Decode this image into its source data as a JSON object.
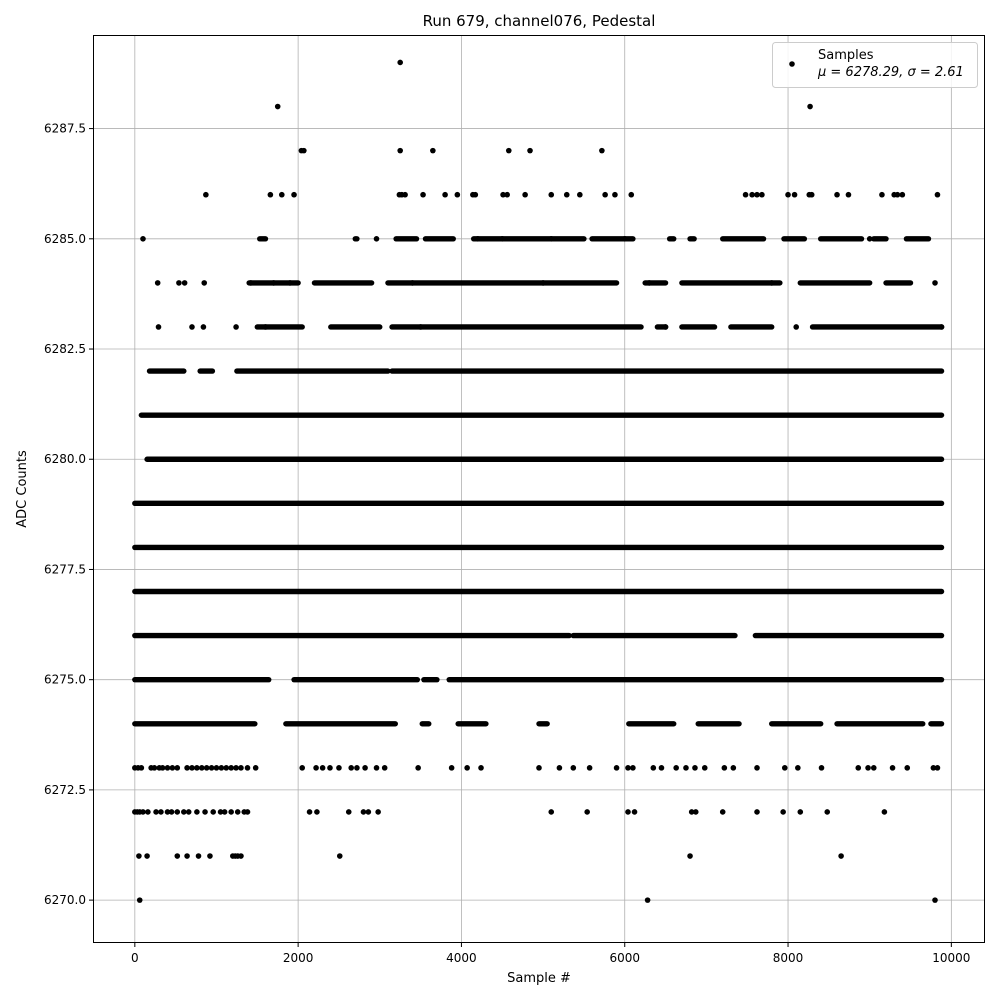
{
  "chart_data": {
    "type": "scatter",
    "title": "Run 679, channel076, Pedestal",
    "xlabel": "Sample #",
    "ylabel": "ADC Counts",
    "xlim": [
      -500,
      10400
    ],
    "ylim": [
      6269.05,
      6289.6
    ],
    "x_ticks": [
      0,
      2000,
      4000,
      6000,
      8000,
      10000
    ],
    "x_tick_labels": [
      "0",
      "2000",
      "4000",
      "6000",
      "8000",
      "10000"
    ],
    "y_ticks": [
      6270.0,
      6272.5,
      6275.0,
      6277.5,
      6280.0,
      6282.5,
      6285.0,
      6287.5
    ],
    "y_tick_labels": [
      "6270.0",
      "6272.5",
      "6275.0",
      "6277.5",
      "6280.0",
      "6282.5",
      "6285.0",
      "6287.5"
    ],
    "grid": true,
    "legend_position": "top-right",
    "series": [
      {
        "name": "Samples",
        "color": "#000000",
        "points": [
          [
            60,
            6270
          ],
          [
            6280,
            6270
          ],
          [
            9800,
            6270
          ],
          [
            50,
            6271
          ],
          [
            150,
            6271
          ],
          [
            520,
            6271
          ],
          [
            640,
            6271
          ],
          [
            780,
            6271
          ],
          [
            920,
            6271
          ],
          [
            1200,
            6271
          ],
          [
            1230,
            6271
          ],
          [
            1260,
            6271
          ],
          [
            1300,
            6271
          ],
          [
            2510,
            6271
          ],
          [
            6800,
            6271
          ],
          [
            8650,
            6271
          ],
          [
            0,
            6272
          ],
          [
            30,
            6272
          ],
          [
            60,
            6272
          ],
          [
            100,
            6272
          ],
          [
            160,
            6272
          ],
          [
            260,
            6272
          ],
          [
            320,
            6272
          ],
          [
            400,
            6272
          ],
          [
            450,
            6272
          ],
          [
            520,
            6272
          ],
          [
            600,
            6272
          ],
          [
            660,
            6272
          ],
          [
            760,
            6272
          ],
          [
            860,
            6272
          ],
          [
            960,
            6272
          ],
          [
            1050,
            6272
          ],
          [
            1100,
            6272
          ],
          [
            1180,
            6272
          ],
          [
            1260,
            6272
          ],
          [
            1340,
            6272
          ],
          [
            1380,
            6272
          ],
          [
            2140,
            6272
          ],
          [
            2230,
            6272
          ],
          [
            2620,
            6272
          ],
          [
            2800,
            6272
          ],
          [
            2860,
            6272
          ],
          [
            2980,
            6272
          ],
          [
            5100,
            6272
          ],
          [
            5540,
            6272
          ],
          [
            6040,
            6272
          ],
          [
            6120,
            6272
          ],
          [
            6820,
            6272
          ],
          [
            6870,
            6272
          ],
          [
            7200,
            6272
          ],
          [
            7620,
            6272
          ],
          [
            7940,
            6272
          ],
          [
            8150,
            6272
          ],
          [
            8480,
            6272
          ],
          [
            9180,
            6272
          ],
          [
            0,
            6273
          ],
          [
            40,
            6273
          ],
          [
            80,
            6273
          ],
          [
            200,
            6273
          ],
          [
            240,
            6273
          ],
          [
            300,
            6273
          ],
          [
            340,
            6273
          ],
          [
            400,
            6273
          ],
          [
            460,
            6273
          ],
          [
            520,
            6273
          ],
          [
            640,
            6273
          ],
          [
            700,
            6273
          ],
          [
            760,
            6273
          ],
          [
            820,
            6273
          ],
          [
            880,
            6273
          ],
          [
            940,
            6273
          ],
          [
            1000,
            6273
          ],
          [
            1060,
            6273
          ],
          [
            1120,
            6273
          ],
          [
            1180,
            6273
          ],
          [
            1240,
            6273
          ],
          [
            1300,
            6273
          ],
          [
            1380,
            6273
          ],
          [
            1480,
            6273
          ],
          [
            2050,
            6273
          ],
          [
            2220,
            6273
          ],
          [
            2300,
            6273
          ],
          [
            2390,
            6273
          ],
          [
            2500,
            6273
          ],
          [
            2650,
            6273
          ],
          [
            2720,
            6273
          ],
          [
            2820,
            6273
          ],
          [
            2960,
            6273
          ],
          [
            3060,
            6273
          ],
          [
            3470,
            6273
          ],
          [
            3880,
            6273
          ],
          [
            4070,
            6273
          ],
          [
            4240,
            6273
          ],
          [
            4950,
            6273
          ],
          [
            5200,
            6273
          ],
          [
            5370,
            6273
          ],
          [
            5570,
            6273
          ],
          [
            5900,
            6273
          ],
          [
            6040,
            6273
          ],
          [
            6100,
            6273
          ],
          [
            6350,
            6273
          ],
          [
            6450,
            6273
          ],
          [
            6630,
            6273
          ],
          [
            6750,
            6273
          ],
          [
            6860,
            6273
          ],
          [
            6980,
            6273
          ],
          [
            7220,
            6273
          ],
          [
            7330,
            6273
          ],
          [
            7620,
            6273
          ],
          [
            7960,
            6273
          ],
          [
            8120,
            6273
          ],
          [
            8410,
            6273
          ],
          [
            8860,
            6273
          ],
          [
            8980,
            6273
          ],
          [
            9050,
            6273
          ],
          [
            9280,
            6273
          ],
          [
            9460,
            6273
          ],
          [
            9780,
            6273
          ],
          [
            9830,
            6273
          ],
          [
            100,
            6285
          ],
          [
            2960,
            6285
          ],
          [
            4200,
            6285
          ],
          [
            4500,
            6285
          ],
          [
            5100,
            6285
          ],
          [
            6000,
            6285
          ],
          [
            9000,
            6285
          ],
          [
            280,
            6284
          ],
          [
            540,
            6284
          ],
          [
            610,
            6284
          ],
          [
            850,
            6284
          ],
          [
            1420,
            6284
          ],
          [
            1700,
            6284
          ],
          [
            1900,
            6284
          ],
          [
            3400,
            6284
          ],
          [
            5000,
            6284
          ],
          [
            6300,
            6284
          ],
          [
            7800,
            6284
          ],
          [
            9800,
            6284
          ],
          [
            290,
            6283
          ],
          [
            700,
            6283
          ],
          [
            840,
            6283
          ],
          [
            1240,
            6283
          ],
          [
            1600,
            6283
          ],
          [
            3500,
            6283
          ],
          [
            6500,
            6283
          ],
          [
            8100,
            6283
          ],
          [
            9880,
            6283
          ],
          [
            870,
            6286
          ],
          [
            1660,
            6286
          ],
          [
            1800,
            6286
          ],
          [
            1950,
            6286
          ],
          [
            3240,
            6286
          ],
          [
            3270,
            6286
          ],
          [
            3310,
            6286
          ],
          [
            3530,
            6286
          ],
          [
            3800,
            6286
          ],
          [
            3950,
            6286
          ],
          [
            4140,
            6286
          ],
          [
            4170,
            6286
          ],
          [
            4510,
            6286
          ],
          [
            4560,
            6286
          ],
          [
            4780,
            6286
          ],
          [
            5100,
            6286
          ],
          [
            5290,
            6286
          ],
          [
            5450,
            6286
          ],
          [
            5760,
            6286
          ],
          [
            5880,
            6286
          ],
          [
            6080,
            6286
          ],
          [
            7480,
            6286
          ],
          [
            7560,
            6286
          ],
          [
            7620,
            6286
          ],
          [
            7680,
            6286
          ],
          [
            8000,
            6286
          ],
          [
            8080,
            6286
          ],
          [
            8260,
            6286
          ],
          [
            8290,
            6286
          ],
          [
            8600,
            6286
          ],
          [
            8740,
            6286
          ],
          [
            9150,
            6286
          ],
          [
            9300,
            6286
          ],
          [
            9340,
            6286
          ],
          [
            9400,
            6286
          ],
          [
            9830,
            6286
          ],
          [
            2040,
            6287
          ],
          [
            2070,
            6287
          ],
          [
            3250,
            6287
          ],
          [
            3650,
            6287
          ],
          [
            4580,
            6287
          ],
          [
            4840,
            6287
          ],
          [
            5720,
            6287
          ],
          [
            1750,
            6288
          ],
          [
            8270,
            6288
          ],
          [
            3250,
            6289
          ]
        ],
        "dense_rows": [
          {
            "y": 6274,
            "segments": [
              [
                0,
                1470
              ],
              [
                1850,
                3190
              ],
              [
                3520,
                3600
              ],
              [
                3960,
                4300
              ],
              [
                4950,
                5050
              ],
              [
                6050,
                6600
              ],
              [
                6900,
                7400
              ],
              [
                7800,
                8400
              ],
              [
                8600,
                9650
              ],
              [
                9750,
                9880
              ]
            ]
          },
          {
            "y": 6275,
            "segments": [
              [
                0,
                1640
              ],
              [
                1950,
                3460
              ],
              [
                3540,
                3700
              ],
              [
                3850,
                9880
              ]
            ]
          },
          {
            "y": 6276,
            "segments": [
              [
                0,
                5320
              ],
              [
                5370,
                7350
              ],
              [
                7600,
                9880
              ]
            ]
          },
          {
            "y": 6277,
            "segments": [
              [
                0,
                9880
              ]
            ]
          },
          {
            "y": 6278,
            "segments": [
              [
                0,
                9880
              ]
            ]
          },
          {
            "y": 6279,
            "segments": [
              [
                0,
                9880
              ]
            ]
          },
          {
            "y": 6280,
            "segments": [
              [
                150,
                9880
              ]
            ]
          },
          {
            "y": 6281,
            "segments": [
              [
                80,
                9880
              ]
            ]
          },
          {
            "y": 6282,
            "segments": [
              [
                180,
                600
              ],
              [
                800,
                950
              ],
              [
                1250,
                3100
              ],
              [
                3150,
                9880
              ]
            ]
          },
          {
            "y": 6283,
            "segments": [
              [
                1500,
                2050
              ],
              [
                2400,
                3000
              ],
              [
                3150,
                6200
              ],
              [
                6400,
                6500
              ],
              [
                6700,
                7100
              ],
              [
                7300,
                7800
              ],
              [
                8300,
                9880
              ]
            ]
          },
          {
            "y": 6284,
            "segments": [
              [
                1400,
                2000
              ],
              [
                2200,
                2900
              ],
              [
                3100,
                5900
              ],
              [
                6250,
                6500
              ],
              [
                6700,
                7900
              ],
              [
                8150,
                9000
              ],
              [
                9200,
                9500
              ]
            ]
          },
          {
            "y": 6285,
            "segments": [
              [
                1530,
                1600
              ],
              [
                2700,
                2720
              ],
              [
                3200,
                3450
              ],
              [
                3560,
                3900
              ],
              [
                4150,
                5500
              ],
              [
                5600,
                6100
              ],
              [
                6550,
                6600
              ],
              [
                6800,
                6850
              ],
              [
                7200,
                7700
              ],
              [
                7950,
                8200
              ],
              [
                8400,
                8900
              ],
              [
                9050,
                9200
              ],
              [
                9450,
                9720
              ]
            ]
          }
        ]
      }
    ],
    "legend": {
      "label": "Samples",
      "stats": "μ = 6278.29, σ = 2.61",
      "mean": 6278.29,
      "sigma": 2.61
    }
  }
}
